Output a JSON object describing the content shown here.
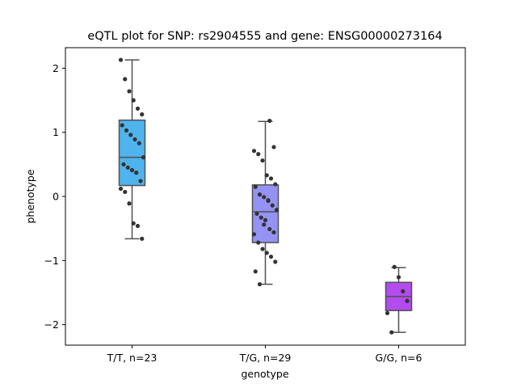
{
  "chart_data": {
    "type": "box",
    "title": "eQTL plot for SNP: rs2904555 and gene: ENSG00000273164",
    "xlabel": "genotype",
    "ylabel": "phenotype",
    "ylim": [
      -2.32,
      2.32
    ],
    "yticks": [
      -2,
      -1,
      0,
      1,
      2
    ],
    "ytick_labels": [
      "−2",
      "−1",
      "0",
      "1",
      "2"
    ],
    "grid": false,
    "categories": [
      "T/T, n=23",
      "T/G, n=29",
      "G/G, n=6"
    ],
    "colors": [
      "#4fb3ee",
      "#9493f5",
      "#b34bee"
    ],
    "boxes": [
      {
        "q1": 0.17,
        "median": 0.61,
        "q3": 1.19,
        "whisker_low": -0.66,
        "whisker_high": 2.13
      },
      {
        "q1": -0.72,
        "median": -0.24,
        "q3": 0.18,
        "whisker_low": -1.37,
        "whisker_high": 1.17
      },
      {
        "q1": -1.78,
        "median": -1.56,
        "q3": -1.34,
        "whisker_low": -2.12,
        "whisker_high": -1.11
      }
    ],
    "points": [
      [
        2.13,
        1.83,
        1.64,
        1.5,
        1.37,
        1.28,
        1.11,
        1.03,
        0.96,
        0.89,
        0.83,
        0.61,
        0.5,
        0.45,
        0.41,
        0.37,
        0.24,
        0.12,
        0.07,
        -0.11,
        -0.42,
        -0.46,
        -0.66
      ],
      [
        1.18,
        0.77,
        0.71,
        0.66,
        0.56,
        0.33,
        0.28,
        0.19,
        0.15,
        0.03,
        -0.01,
        -0.07,
        -0.14,
        -0.21,
        -0.27,
        -0.33,
        -0.37,
        -0.51,
        -0.56,
        -0.59,
        -0.72,
        -0.82,
        -0.88,
        -0.94,
        -1.02,
        -1.17,
        -1.37,
        -0.44,
        -0.06
      ],
      [
        -1.1,
        -1.26,
        -1.48,
        -1.63,
        -1.82,
        -2.12
      ]
    ]
  }
}
